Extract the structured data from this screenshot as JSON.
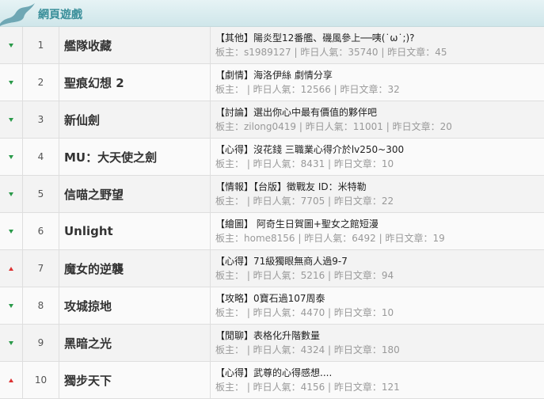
{
  "header": {
    "title": "網頁遊戲"
  },
  "colors": {
    "up": "#dd3333",
    "down": "#2a9a4a",
    "title": "#3a8f9a"
  },
  "rows": [
    {
      "rank": "1",
      "trend": "down",
      "name": "艦隊收藏",
      "topic": "【其他】陽炎型12番艦、磯風參上──咦(˙ω˙;)?",
      "meta": "板主：s1989127 | 昨日人氣：35740 | 昨日文章：45"
    },
    {
      "rank": "2",
      "trend": "down",
      "name": "聖痕幻想 2",
      "topic": "【劇情】海洛伊絲 劇情分享",
      "meta": "板主： | 昨日人氣：12566 | 昨日文章：32"
    },
    {
      "rank": "3",
      "trend": "down",
      "name": "新仙劍",
      "topic": "【討論】選出你心中最有價值的夥伴吧",
      "meta": "板主：zilong0419 | 昨日人氣：11001 | 昨日文章：20"
    },
    {
      "rank": "4",
      "trend": "down",
      "name": "MU：大天使之劍",
      "topic": "【心得】沒花錢 三職業心得介於lv250~300",
      "meta": "板主： | 昨日人氣：8431 | 昨日文章：10"
    },
    {
      "rank": "5",
      "trend": "down",
      "name": "信喵之野望",
      "topic": "【情報】【台版】徵戰友 ID：米特勒",
      "meta": "板主： | 昨日人氣：7705 | 昨日文章：22"
    },
    {
      "rank": "6",
      "trend": "down",
      "name": "Unlight",
      "topic": "【繪圖】 阿奇生日賀圖+聖女之館短漫",
      "meta": "板主：home8156 | 昨日人氣：6492 | 昨日文章：19"
    },
    {
      "rank": "7",
      "trend": "up",
      "name": "魔女的逆襲",
      "topic": "【心得】71級獨眼無商人過9-7",
      "meta": "板主： | 昨日人氣：5216 | 昨日文章：94"
    },
    {
      "rank": "8",
      "trend": "down",
      "name": "攻城掠地",
      "topic": "【攻略】0寶石過107周泰",
      "meta": "板主： | 昨日人氣：4470 | 昨日文章：10"
    },
    {
      "rank": "9",
      "trend": "down",
      "name": "黑暗之光",
      "topic": "【閒聊】表格化升階數量",
      "meta": "板主： | 昨日人氣：4324 | 昨日文章：180"
    },
    {
      "rank": "10",
      "trend": "up",
      "name": "獨步天下",
      "topic": "【心得】武尊的心得感想....",
      "meta": "板主： | 昨日人氣：4156 | 昨日文章：121"
    }
  ]
}
